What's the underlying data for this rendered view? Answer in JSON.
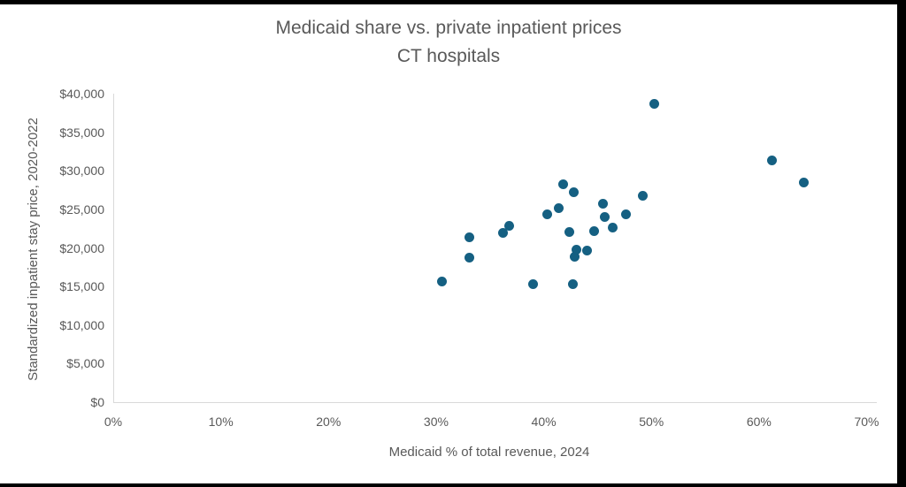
{
  "chart": {
    "title_line1": "Medicaid share vs. private inpatient prices",
    "title_line2": "CT hospitals",
    "x_axis": {
      "label": "Medicaid % of total revenue, 2024",
      "tick_values": [
        0,
        10,
        20,
        30,
        40,
        50,
        60,
        70
      ],
      "tick_labels": [
        "0%",
        "10%",
        "20%",
        "30%",
        "40%",
        "50%",
        "60%",
        "70%"
      ]
    },
    "y_axis": {
      "label": "Standardized inpatient stay price, 2020-2022",
      "tick_values": [
        0,
        5000,
        10000,
        15000,
        20000,
        25000,
        30000,
        35000,
        40000
      ],
      "tick_labels": [
        "$0",
        "$5,000",
        "$10,000",
        "$15,000",
        "$20,000",
        "$25,000",
        "$30,000",
        "$35,000",
        "$40,000"
      ]
    },
    "colors": {
      "dot": "#156082",
      "axis_line": "#D9D9D9",
      "text": "#595959",
      "plot_background": "#FFFFFF",
      "frame_background": "#000000"
    }
  },
  "chart_data": {
    "type": "scatter",
    "title": "Medicaid share vs. private inpatient prices — CT hospitals",
    "xlabel": "Medicaid % of total revenue, 2024",
    "ylabel": "Standardized inpatient stay price, 2020-2022",
    "xlim": [
      0,
      70
    ],
    "ylim": [
      0,
      40000
    ],
    "x_unit": "percent",
    "y_unit": "USD",
    "grid": false,
    "legend": false,
    "points": [
      [
        30.5,
        15700
      ],
      [
        33.1,
        21350
      ],
      [
        33.1,
        18700
      ],
      [
        36.2,
        21900
      ],
      [
        36.8,
        22900
      ],
      [
        39.0,
        15350
      ],
      [
        40.3,
        24400
      ],
      [
        41.4,
        25200
      ],
      [
        41.8,
        28200
      ],
      [
        42.4,
        22050
      ],
      [
        42.7,
        15250
      ],
      [
        42.8,
        27250
      ],
      [
        42.9,
        18900
      ],
      [
        43.0,
        19750
      ],
      [
        44.0,
        19650
      ],
      [
        44.7,
        22200
      ],
      [
        45.5,
        25700
      ],
      [
        45.7,
        24050
      ],
      [
        46.4,
        22650
      ],
      [
        47.6,
        24400
      ],
      [
        49.2,
        26800
      ],
      [
        50.3,
        38650
      ],
      [
        61.2,
        31400
      ],
      [
        64.2,
        28500
      ]
    ]
  }
}
